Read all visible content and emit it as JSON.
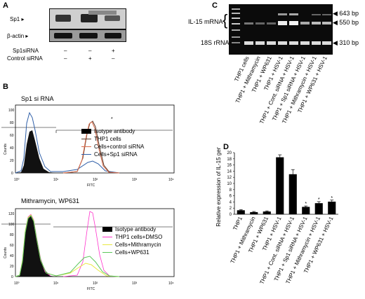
{
  "panels": {
    "A": {
      "label": "A",
      "row_labels": [
        "Sp1 ▸",
        "β-actin ▸"
      ],
      "treatments": [
        {
          "name": "Sp1siRNA",
          "values": [
            "–",
            "–",
            "+"
          ]
        },
        {
          "name": "Control siRNA",
          "values": [
            "–",
            "+",
            "–"
          ]
        }
      ]
    },
    "B": {
      "label": "B",
      "top": {
        "title": "Sp1 si RNA",
        "ylabel": "Counts",
        "xlabel": "FITC",
        "yticks": [
          "0",
          "20",
          "40",
          "60",
          "80",
          "100"
        ],
        "xticks": [
          "10⁰",
          "10¹",
          "10²",
          "10³",
          "10⁴"
        ],
        "marker": "*",
        "legend": [
          "Isotype antibody",
          "THP1 cells",
          "Cells+control siRNA",
          "Cells+Sp1 siRNA"
        ],
        "colors": [
          "#000000",
          "#5a3a2a",
          "#d96a4a",
          "#2f5fa8"
        ]
      },
      "bottom": {
        "title": "Mithramycin, WP631",
        "ylabel": "Counts",
        "xlabel": "FITC",
        "yticks": [
          "0",
          "20",
          "40",
          "60",
          "80",
          "100",
          "120"
        ],
        "xticks": [
          "10⁰",
          "10¹",
          "10²",
          "10³",
          "10⁴"
        ],
        "legend": [
          "Isotype antibody",
          "THP1 cells+DMSO",
          "Cells+Mithramycin",
          "Cells+WP631"
        ],
        "colors": [
          "#000000",
          "#ff33cc",
          "#e8e840",
          "#5cc85c"
        ]
      }
    },
    "C": {
      "label": "C",
      "left_labels": [
        "IL-15 mRNA",
        "18S rRNA"
      ],
      "bp_labels": [
        "643 bp",
        "550 bp",
        "310 bp"
      ],
      "lanes": [
        "THP1 cells",
        "THP1 + Mithramycin",
        "THP1 + WP631",
        "THP1 + HSV-1",
        "THP1 + Cont. siRNA + HSV-1",
        "THP1 + Sp1 siRNA + HSV-1",
        "THP1 + Mithramycin + HSV-1",
        "THP1 + WP631 + HSV-1"
      ]
    },
    "D": {
      "label": "D"
    }
  },
  "chart_data": {
    "type": "bar",
    "categories": [
      "THP1",
      "THP1 + Mithramycin",
      "THP1 + WP631",
      "THP1 + HSV-1",
      "THP1 + Cont. siRNA + HSV-1",
      "THP1 + Sp1 siRNA + HSV-1",
      "THP1 + Mithramycin + HSV-1",
      "THP1 + WP631 + HSV-1"
    ],
    "values": [
      1.3,
      0.7,
      0.9,
      18.5,
      13.0,
      2.4,
      3.6,
      4.1
    ],
    "errors": [
      0.2,
      0.2,
      0.2,
      0.8,
      1.5,
      0.3,
      0.5,
      0.5
    ],
    "significant": [
      false,
      false,
      false,
      false,
      false,
      true,
      true,
      true
    ],
    "sig_marker": "*",
    "title": "",
    "xlabel": "",
    "ylabel": "Relative expression of IL-15 gene",
    "yticks": [
      "0",
      "2",
      "4",
      "6",
      "8",
      "10",
      "12",
      "14",
      "16",
      "18",
      "20"
    ],
    "ylim": [
      0,
      20
    ],
    "grid": false,
    "color": "#000000"
  }
}
